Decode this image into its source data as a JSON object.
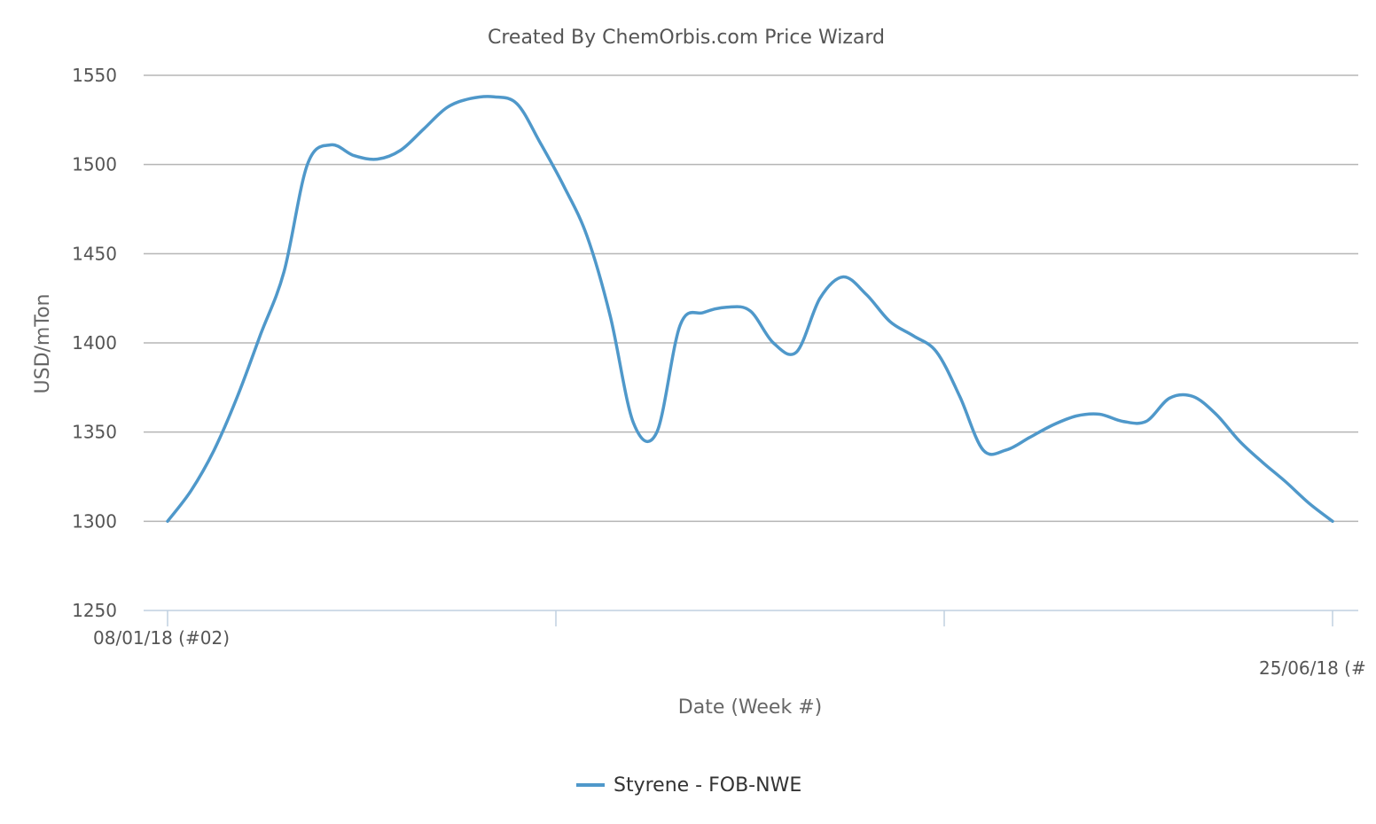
{
  "chart_data": {
    "type": "line",
    "title": "Created By ChemOrbis.com Price Wizard",
    "xlabel": "Date (Week #)",
    "ylabel": "USD/mTon",
    "ylim": [
      1250,
      1550
    ],
    "yticks": [
      1250,
      1300,
      1350,
      1400,
      1450,
      1500,
      1550
    ],
    "x_tick_labels": [
      "08/01/18 (#02)",
      "25/06/18 (#"
    ],
    "grid": true,
    "legend_position": "bottom-center",
    "series": [
      {
        "name": "Styrene - FOB-NWE",
        "color": "#4f98ca",
        "x": [
          0,
          0.02,
          0.04,
          0.06,
          0.08,
          0.1,
          0.12,
          0.14,
          0.16,
          0.18,
          0.2,
          0.22,
          0.24,
          0.26,
          0.28,
          0.3,
          0.32,
          0.34,
          0.36,
          0.38,
          0.4,
          0.42,
          0.44,
          0.46,
          0.48,
          0.5,
          0.52,
          0.54,
          0.56,
          0.58,
          0.6,
          0.62,
          0.64,
          0.66,
          0.68,
          0.7,
          0.72,
          0.74,
          0.76,
          0.78,
          0.8,
          0.82,
          0.84,
          0.86,
          0.88,
          0.9,
          0.92,
          0.94,
          0.96,
          0.98,
          1.0
        ],
        "values": [
          1300,
          1317,
          1340,
          1370,
          1405,
          1440,
          1500,
          1511,
          1505,
          1503,
          1508,
          1520,
          1532,
          1537,
          1538,
          1534,
          1512,
          1488,
          1460,
          1415,
          1355,
          1350,
          1410,
          1417,
          1420,
          1418,
          1400,
          1395,
          1425,
          1437,
          1427,
          1412,
          1404,
          1395,
          1370,
          1340,
          1340,
          1347,
          1354,
          1359,
          1360,
          1356,
          1356,
          1369,
          1370,
          1360,
          1345,
          1333,
          1322,
          1310,
          1300
        ]
      }
    ]
  }
}
